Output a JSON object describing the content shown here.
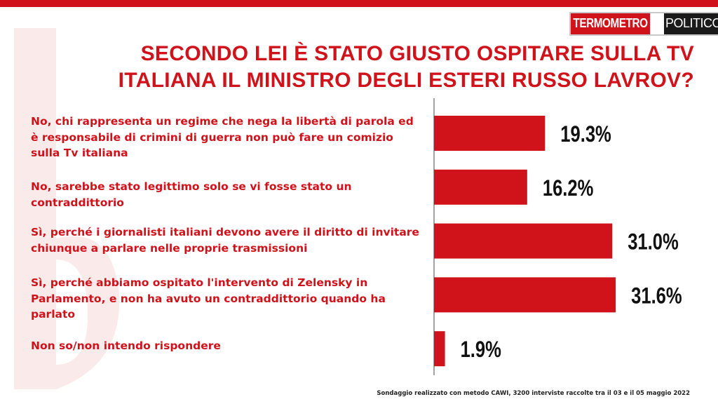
{
  "brand": {
    "logo_part1": "TERMOMETRO",
    "logo_part2": "POLITICO",
    "accent_color": "#d0121b"
  },
  "title": {
    "line1": "SECONDO LEI È STATO GIUSTO OSPITARE SULLA TV",
    "line2": "ITALIANA IL MINISTRO DEGLI ESTERI RUSSO LAVROV?"
  },
  "chart_data": {
    "type": "bar",
    "orientation": "horizontal",
    "categories": [
      "No, chi rappresenta un regime che nega la libertà  di parola ed è responsabile di crimini di guerra non può fare un comizio sulla Tv italiana",
      "No, sarebbe stato legittimo solo se vi fosse stato un contraddittorio",
      "Sì, perché i giornalisti italiani devono avere il diritto di invitare chiunque a parlare nelle proprie trasmissioni",
      "Sì, perché abbiamo ospitato l'intervento di Zelensky in Parlamento, e non ha avuto un contraddittorio quando ha parlato",
      "Non so/non intendo rispondere"
    ],
    "values": [
      19.3,
      16.2,
      31.0,
      31.6,
      1.9
    ],
    "value_labels": [
      "19.3%",
      "16.2%",
      "31.0%",
      "31.6%",
      "1.9%"
    ],
    "bar_color": "#d0121b",
    "grid": false
  },
  "source_note": "Sondaggio realizzato con metodo CAWI, 3200 interviste raccolte tra il 03 e il 05 maggio 2022"
}
